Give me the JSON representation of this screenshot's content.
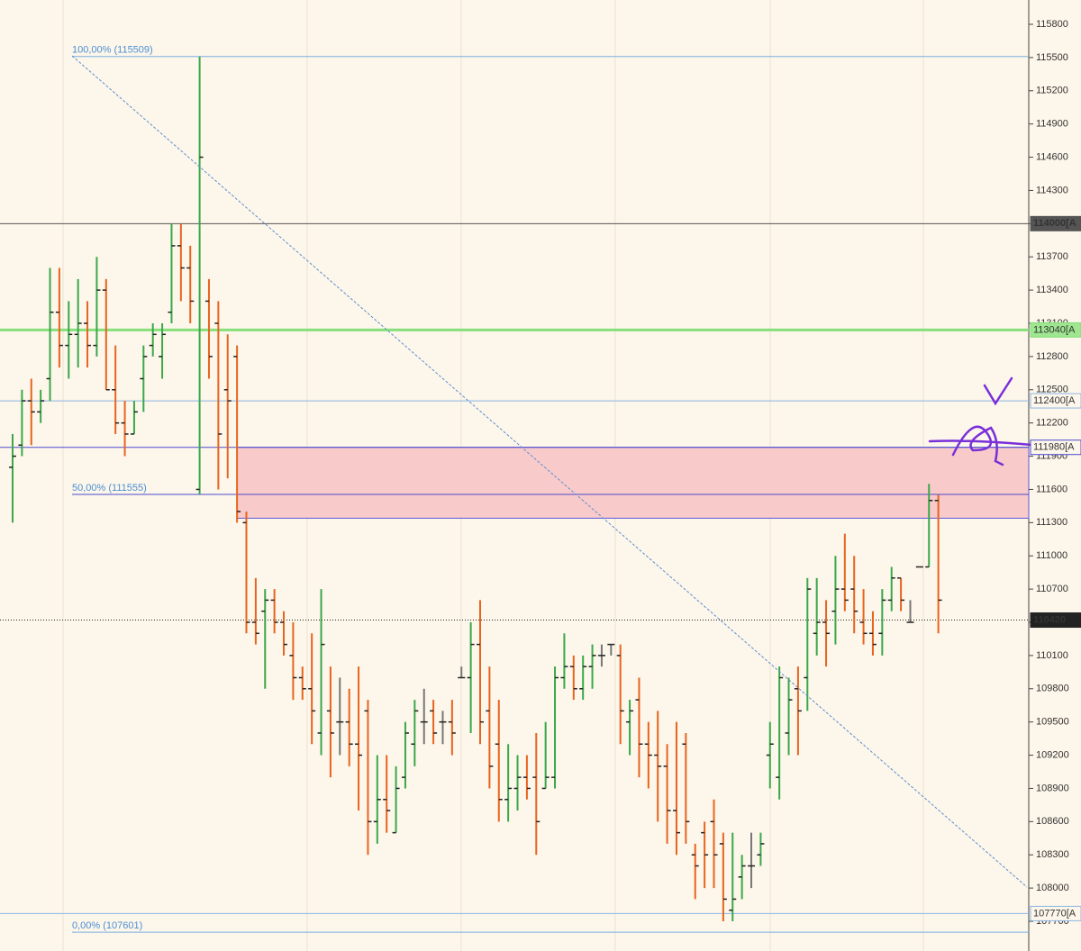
{
  "chart_data": {
    "type": "ohlc",
    "ylim": [
      107700,
      115800
    ],
    "yticks": [
      115800,
      115500,
      115200,
      114900,
      114600,
      114300,
      114000,
      113700,
      113400,
      113100,
      112800,
      112500,
      112200,
      111900,
      111600,
      111300,
      111000,
      110700,
      110400,
      110100,
      109800,
      109500,
      109200,
      108900,
      108600,
      108300,
      108000,
      107700
    ],
    "up_color": "#3aa84a",
    "down_color": "#e8641e",
    "ohlc": [
      [
        111800,
        112100,
        111300,
        111900
      ],
      [
        112000,
        112500,
        111900,
        112400
      ],
      [
        112400,
        112600,
        112000,
        112300
      ],
      [
        112300,
        112500,
        112200,
        112400
      ],
      [
        112600,
        113600,
        112400,
        113200
      ],
      [
        113200,
        113600,
        112700,
        112900
      ],
      [
        112900,
        113300,
        112600,
        113000
      ],
      [
        113000,
        113500,
        112700,
        113100
      ],
      [
        113100,
        113300,
        112700,
        112900
      ],
      [
        112900,
        113700,
        112800,
        113400
      ],
      [
        113400,
        113500,
        112500,
        112500
      ],
      [
        112500,
        112900,
        112100,
        112200
      ],
      [
        112200,
        112400,
        111900,
        112100
      ],
      [
        112100,
        112400,
        112100,
        112300
      ],
      [
        112600,
        112900,
        112300,
        112800
      ],
      [
        112900,
        113100,
        112800,
        113000
      ],
      [
        112800,
        113100,
        112600,
        113000
      ],
      [
        113200,
        114000,
        113100,
        113800
      ],
      [
        113800,
        114000,
        113300,
        113600
      ],
      [
        113600,
        113800,
        113100,
        113300
      ],
      [
        111600,
        115509,
        111555,
        114600
      ],
      [
        113300,
        113500,
        112600,
        112800
      ],
      [
        113100,
        113300,
        111600,
        112100
      ],
      [
        112500,
        113000,
        111700,
        112400
      ],
      [
        112800,
        112900,
        111300,
        111400
      ],
      [
        111300,
        111400,
        110300,
        110400
      ],
      [
        110400,
        110800,
        110200,
        110300
      ],
      [
        110500,
        110700,
        109800,
        110600
      ],
      [
        110600,
        110700,
        110300,
        110400
      ],
      [
        110400,
        110500,
        110100,
        110200
      ],
      [
        110100,
        110400,
        109700,
        109900
      ],
      [
        109900,
        110000,
        109700,
        109800
      ],
      [
        109800,
        110300,
        109300,
        109600
      ],
      [
        109400,
        110700,
        109200,
        110200
      ],
      [
        109600,
        110000,
        109000,
        109400
      ],
      [
        109500,
        109900,
        109200,
        109500
      ],
      [
        109500,
        109800,
        109100,
        109300
      ],
      [
        109300,
        110000,
        108700,
        109200
      ],
      [
        109600,
        109700,
        108300,
        108600
      ],
      [
        108600,
        109200,
        108400,
        108800
      ],
      [
        108800,
        109200,
        108500,
        108700
      ],
      [
        108500,
        109100,
        108500,
        108900
      ],
      [
        109000,
        109500,
        108900,
        109400
      ],
      [
        109300,
        109700,
        109100,
        109600
      ],
      [
        109500,
        109800,
        109300,
        109500
      ],
      [
        109600,
        109700,
        109300,
        109400
      ],
      [
        109500,
        109600,
        109300,
        109500
      ],
      [
        109500,
        109700,
        109200,
        109400
      ],
      [
        109900,
        110000,
        109900,
        109900
      ],
      [
        109900,
        110400,
        109400,
        110200
      ],
      [
        110200,
        110600,
        109300,
        109500
      ],
      [
        109600,
        110000,
        108900,
        109100
      ],
      [
        109300,
        109700,
        108600,
        108800
      ],
      [
        108800,
        109300,
        108600,
        108900
      ],
      [
        108900,
        109200,
        108700,
        109000
      ],
      [
        109000,
        109200,
        108800,
        108900
      ],
      [
        109000,
        109400,
        108300,
        108600
      ],
      [
        108900,
        109500,
        108900,
        109000
      ],
      [
        109000,
        110000,
        108900,
        109900
      ],
      [
        109900,
        110300,
        109800,
        110000
      ],
      [
        110000,
        110100,
        109700,
        109800
      ],
      [
        109800,
        110100,
        109700,
        110000
      ],
      [
        110000,
        110200,
        109800,
        110100
      ],
      [
        110100,
        110200,
        110000,
        110100
      ],
      [
        110200,
        110200,
        110100,
        110200
      ],
      [
        110100,
        110200,
        109300,
        109600
      ],
      [
        109500,
        109700,
        109200,
        109600
      ],
      [
        109700,
        109900,
        109000,
        109300
      ],
      [
        109300,
        109500,
        108900,
        109200
      ],
      [
        109200,
        109600,
        108600,
        109100
      ],
      [
        109100,
        109300,
        108400,
        108700
      ],
      [
        108700,
        109500,
        108300,
        108500
      ],
      [
        109300,
        109400,
        108400,
        108600
      ],
      [
        108300,
        108400,
        107900,
        108200
      ],
      [
        108500,
        108600,
        108000,
        108300
      ],
      [
        108600,
        108800,
        108000,
        108300
      ],
      [
        108400,
        108500,
        107700,
        107900
      ],
      [
        107800,
        108500,
        107700,
        107900
      ],
      [
        108100,
        108300,
        107900,
        108200
      ],
      [
        108200,
        108500,
        108000,
        108200
      ],
      [
        108300,
        108500,
        108200,
        108400
      ],
      [
        109200,
        109500,
        108900,
        109300
      ],
      [
        109000,
        110000,
        108800,
        109900
      ],
      [
        109400,
        109900,
        109200,
        109700
      ],
      [
        109800,
        110000,
        109200,
        109600
      ],
      [
        109900,
        110800,
        109600,
        110700
      ],
      [
        110300,
        110800,
        110100,
        110400
      ],
      [
        110400,
        110600,
        110000,
        110300
      ],
      [
        110500,
        111000,
        110200,
        110700
      ],
      [
        110700,
        111200,
        110500,
        110600
      ],
      [
        110700,
        111000,
        110300,
        110500
      ],
      [
        110400,
        110700,
        110200,
        110300
      ],
      [
        110300,
        110500,
        110100,
        110200
      ],
      [
        110300,
        110700,
        110100,
        110600
      ],
      [
        110600,
        110900,
        110500,
        110800
      ],
      [
        110800,
        110800,
        110500,
        110600
      ],
      [
        110400,
        110600,
        110400,
        110400
      ],
      [
        110900,
        110900,
        110900,
        110900
      ],
      [
        110900,
        111650,
        110900,
        111500
      ],
      [
        111500,
        111550,
        110300,
        110600
      ]
    ],
    "levels": [
      {
        "value": 114000,
        "label": "114000[A",
        "color": "#555555"
      },
      {
        "value": 113040,
        "label": "113040[A",
        "color": "#86e07a"
      },
      {
        "value": 112400,
        "label": "112400[A",
        "color": "#8ab6e6"
      },
      {
        "value": 111980,
        "label": "111980[A",
        "color": "#4a4ad0"
      },
      {
        "value": 110420,
        "label": "110420",
        "color": "#222222"
      },
      {
        "value": 107770,
        "label": "107770[A",
        "color": "#8ab6e6"
      }
    ],
    "fib": [
      {
        "value": 115509,
        "label": "100,00% (115509)"
      },
      {
        "value": 111555,
        "label": "50,00% (111555)"
      },
      {
        "value": 107601,
        "label": "0,00% (107601)"
      }
    ],
    "zone": {
      "top": 111980,
      "bottom": 111340,
      "color": "#f9caca"
    }
  }
}
